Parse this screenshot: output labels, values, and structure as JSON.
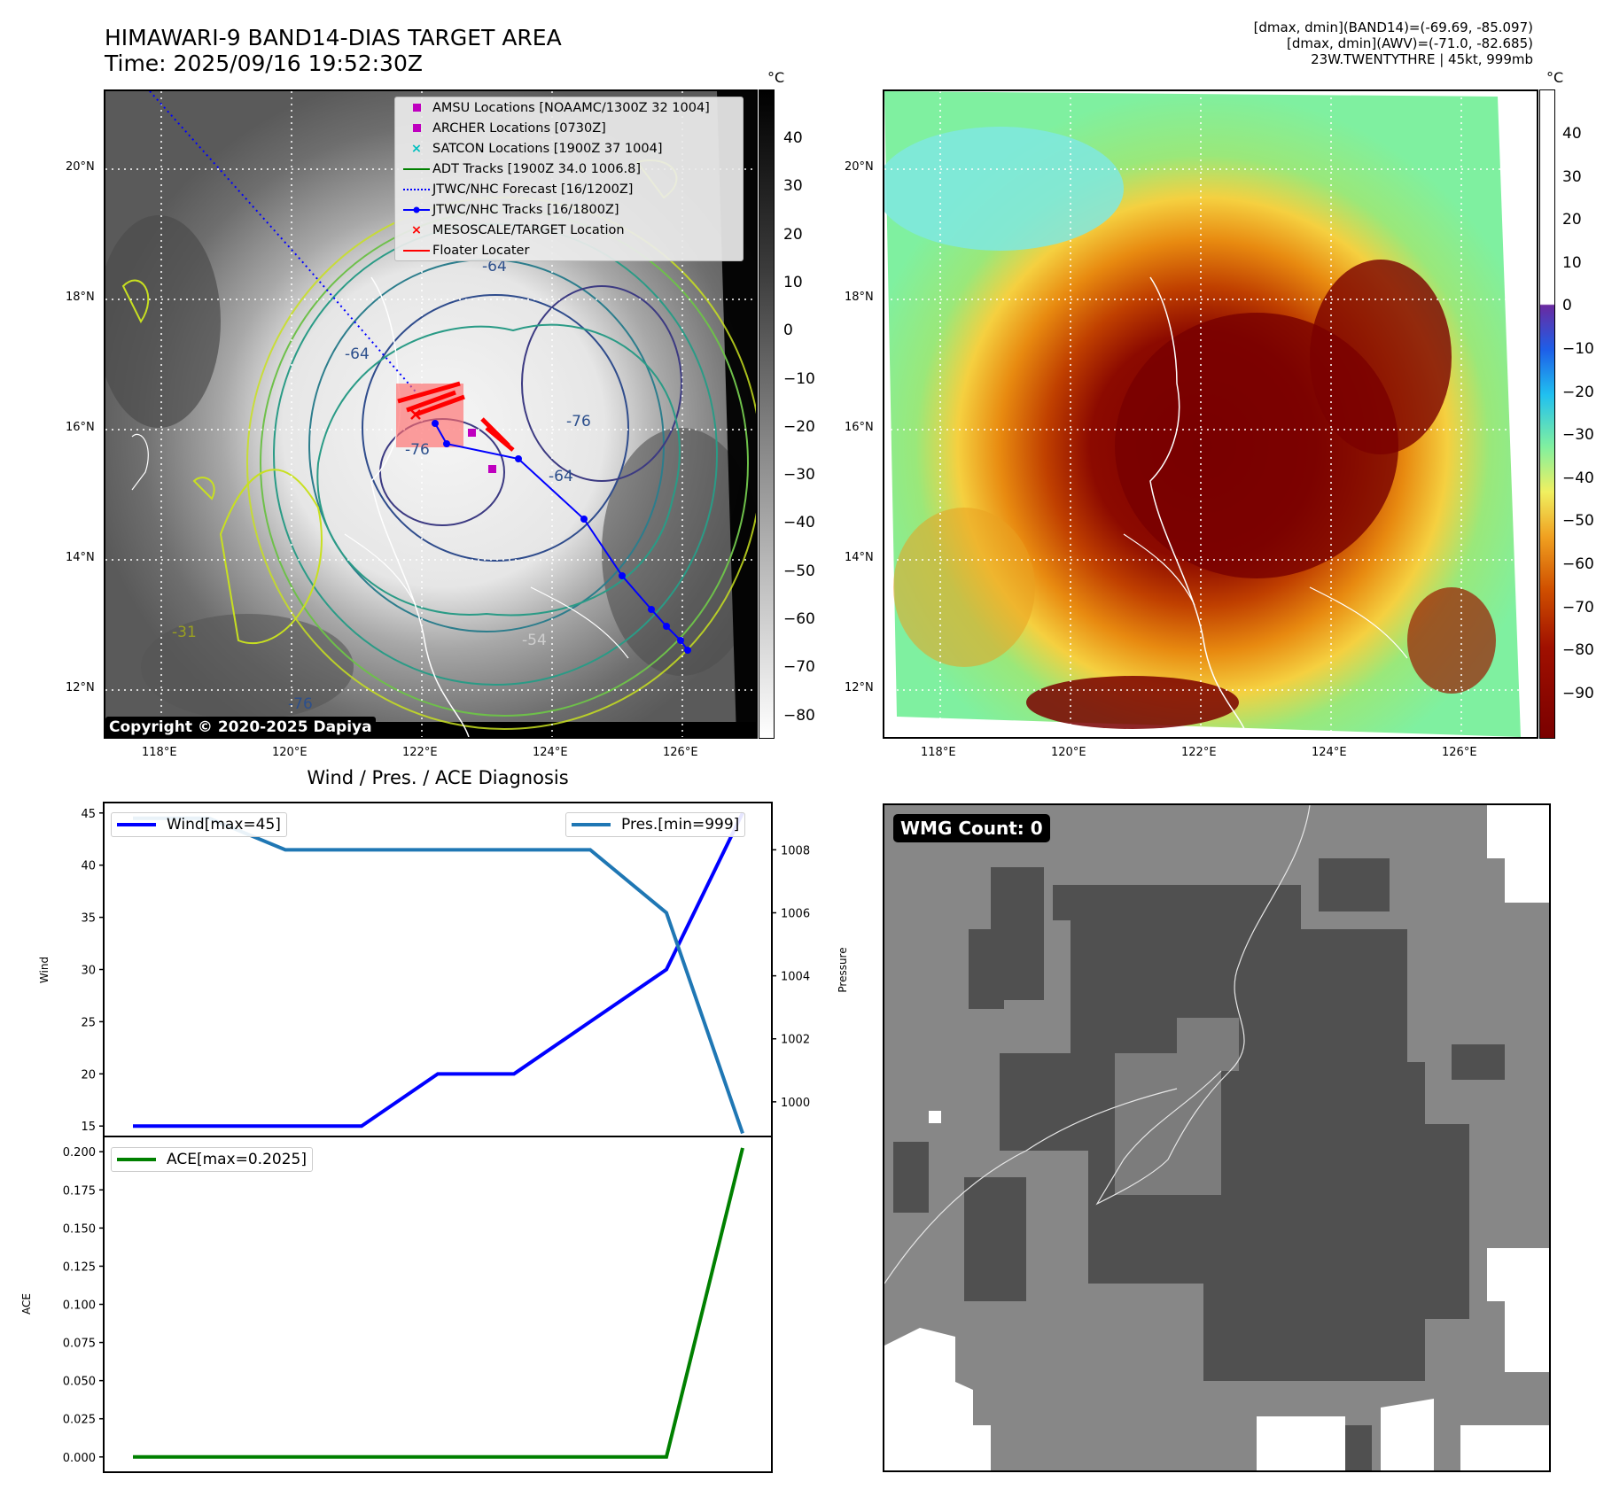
{
  "header": {
    "title_line1": "HIMAWARI-9 BAND14-DIAS TARGET AREA",
    "title_line2": "Time: 2025/09/16 19:52:30Z",
    "info_line1": "[dmax, dmin](BAND14)=(-69.69, -85.097)",
    "info_line2": "[dmax, dmin](AWV)=(-71.0, -82.685)",
    "info_line3": "23W.TWENTYTHRE | 45kt, 999mb"
  },
  "map_left": {
    "legend": [
      {
        "label": "AMSU Locations [NOAAMC/1300Z 32 1004]",
        "symbol": "square",
        "color": "#bf00bf"
      },
      {
        "label": "ARCHER Locations [0730Z]",
        "symbol": "square",
        "color": "#bf00bf"
      },
      {
        "label": "SATCON Locations [1900Z 37 1004]",
        "symbol": "x",
        "color": "#00bfbf"
      },
      {
        "label": "ADT Tracks [1900Z 34.0 1006.8]",
        "symbol": "line",
        "color": "#008000"
      },
      {
        "label": "JTWC/NHC Forecast [16/1200Z]",
        "symbol": "dotted",
        "color": "#0000ff"
      },
      {
        "label": "JTWC/NHC Tracks [16/1800Z]",
        "symbol": "line-dot",
        "color": "#0000ff"
      },
      {
        "label": "MESOSCALE/TARGET Location",
        "symbol": "x",
        "color": "#ff0000"
      },
      {
        "label": "Floater Locater",
        "symbol": "line",
        "color": "#ff0000"
      }
    ],
    "copyright": "Copyright © 2020-2025 Dapiya",
    "contour_labels": [
      "-64",
      "-76",
      "-64",
      "-76",
      "-64",
      "-54",
      "-31",
      "-76"
    ],
    "colorbar": {
      "unit": "°C",
      "ticks": [
        "40",
        "30",
        "20",
        "10",
        "0",
        "−10",
        "−20",
        "−30",
        "−40",
        "−50",
        "−60",
        "−70",
        "−80"
      ]
    }
  },
  "map_right": {
    "colorbar": {
      "unit": "°C",
      "ticks": [
        "40",
        "30",
        "20",
        "10",
        "0",
        "−10",
        "−20",
        "−30",
        "−40",
        "−50",
        "−60",
        "−70",
        "−80",
        "−90"
      ]
    }
  },
  "map_axes": {
    "lat_labels": [
      "20°N",
      "18°N",
      "16°N",
      "14°N",
      "12°N"
    ],
    "lon_labels": [
      "118°E",
      "120°E",
      "122°E",
      "124°E",
      "126°E"
    ]
  },
  "diagnosis": {
    "title": "Wind / Pres. / ACE Diagnosis",
    "wind_legend": "Wind[max=45]",
    "pres_legend": "Pres.[min=999]",
    "ace_legend": "ACE[max=0.2025]",
    "wind_ylabel": "Wind",
    "pres_ylabel": "Pressure",
    "ace_ylabel": "ACE"
  },
  "wmg": {
    "badge": "WMG Count: 0"
  },
  "chart_data": [
    {
      "type": "line",
      "ylabel": "Wind",
      "ylim": [
        14,
        46
      ],
      "yticks": [
        15,
        20,
        25,
        30,
        35,
        40,
        45
      ],
      "series": [
        {
          "name": "Wind[max=45]",
          "color": "#0000ff",
          "values": [
            15,
            15,
            15,
            15,
            20,
            20,
            25,
            30,
            45
          ]
        }
      ]
    },
    {
      "type": "line",
      "ylabel": "Pressure",
      "ylim": [
        998.9,
        1009.5
      ],
      "yticks": [
        1000,
        1002,
        1004,
        1006,
        1008
      ],
      "series": [
        {
          "name": "Pres.[min=999]",
          "color": "#1f77b4",
          "values": [
            1009,
            1009,
            1008,
            1008,
            1008,
            1008,
            1008,
            1006,
            999
          ]
        }
      ]
    },
    {
      "type": "line",
      "ylabel": "ACE",
      "ylim": [
        -0.01,
        0.21
      ],
      "yticks": [
        0.0,
        0.025,
        0.05,
        0.075,
        0.1,
        0.125,
        0.15,
        0.175,
        0.2
      ],
      "series": [
        {
          "name": "ACE[max=0.2025]",
          "color": "#008000",
          "values": [
            0,
            0,
            0,
            0,
            0,
            0,
            0,
            0,
            0.2025
          ]
        }
      ]
    }
  ]
}
